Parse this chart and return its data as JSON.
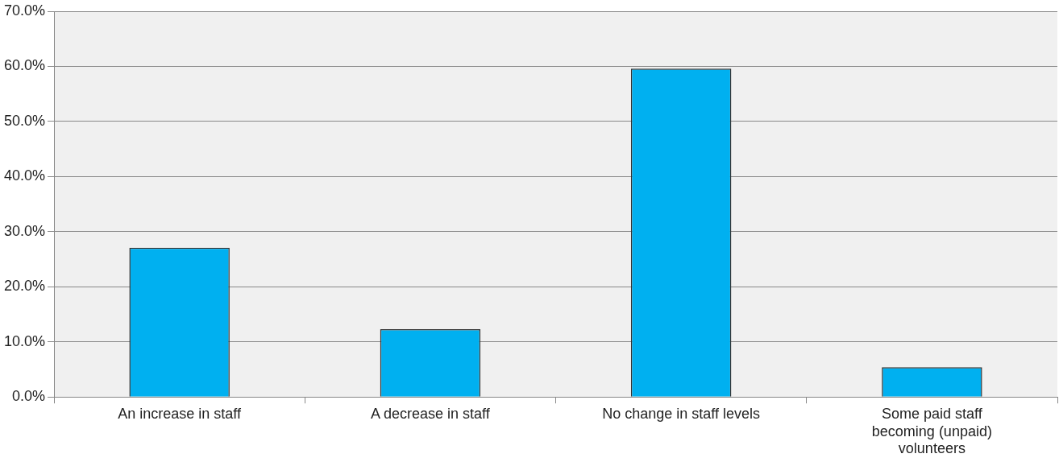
{
  "chart_data": {
    "type": "bar",
    "categories": [
      "An increase in staff",
      "A decrease in staff",
      "No change in staff levels",
      "Some paid staff becoming (unpaid) volunteers"
    ],
    "values": [
      27.1,
      12.3,
      59.6,
      5.4
    ],
    "color": "#00b0f0",
    "ylim": [
      0,
      70
    ],
    "yticks": [
      {
        "value": 0,
        "label": "0.0%"
      },
      {
        "value": 10,
        "label": "10.0%"
      },
      {
        "value": 20,
        "label": "20.0%"
      },
      {
        "value": 30,
        "label": "30.0%"
      },
      {
        "value": 40,
        "label": "40.0%"
      },
      {
        "value": 50,
        "label": "50.0%"
      },
      {
        "value": 60,
        "label": "60.0%"
      },
      {
        "value": 70,
        "label": "70.0%"
      }
    ],
    "grid": "y",
    "legend": false
  }
}
